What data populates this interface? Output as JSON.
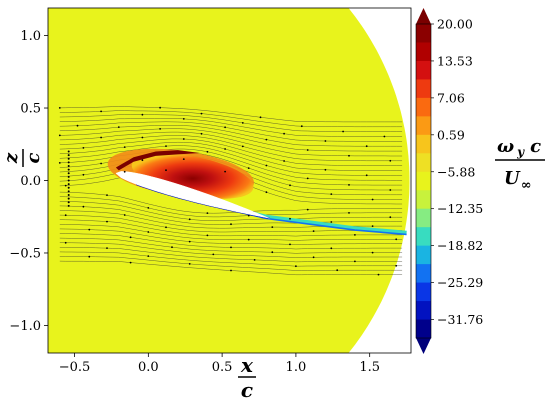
{
  "chart_data": {
    "type": "heatmap",
    "title": "",
    "xlabel_num": "x",
    "xlabel_den": "c",
    "ylabel_num": "z",
    "ylabel_den": "c",
    "cbar_label_num_a": "ω",
    "cbar_label_num_sub": "y",
    "cbar_label_num_b": "c",
    "cbar_label_den": "U",
    "cbar_label_den_sub": "∞",
    "xlim": [
      -0.68,
      1.78
    ],
    "ylim": [
      -1.19,
      1.19
    ],
    "xticks": [
      -0.5,
      0.0,
      0.5,
      1.0,
      1.5
    ],
    "xtick_labels": [
      "−0.5",
      "0.0",
      "0.5",
      "1.0",
      "1.5"
    ],
    "yticks": [
      1.0,
      0.5,
      0.0,
      -0.5,
      -1.0
    ],
    "ytick_labels": [
      "1.0",
      "0.5",
      "0.0",
      "−0.5",
      "−1.0"
    ],
    "colorbar": {
      "min": -35,
      "max": 20,
      "ticks": [
        20.0,
        13.53,
        7.06,
        0.59,
        -5.88,
        -12.35,
        -18.82,
        -25.29,
        -31.76
      ],
      "tick_labels": [
        "20.00",
        "13.53",
        "7.06",
        "0.59",
        "−5.88",
        "−12.35",
        "−18.82",
        "−25.29",
        "−31.76"
      ],
      "colors_top_to_bottom": [
        "#8b0000",
        "#b00000",
        "#d41010",
        "#ee3a10",
        "#fa6a10",
        "#fb9a14",
        "#f7c51c",
        "#eee024",
        "#e8f31c",
        "#c8f23c",
        "#86ec82",
        "#38dcc0",
        "#1ab4e2",
        "#1272f2",
        "#0a36e6",
        "#0212c0",
        "#00008b"
      ]
    },
    "field": {
      "background_value": 0,
      "domain_circle_center": [
        -0.15,
        0.0
      ],
      "domain_circle_radius": 1.92,
      "airfoil_leading_edge": [
        -0.22,
        0.05
      ],
      "airfoil_trailing_edge": [
        0.82,
        -0.26
      ],
      "positive_vortex_peak": [
        0.45,
        0.05
      ],
      "positive_vortex_max": 20.0,
      "negative_shear_min": -31.76
    }
  }
}
